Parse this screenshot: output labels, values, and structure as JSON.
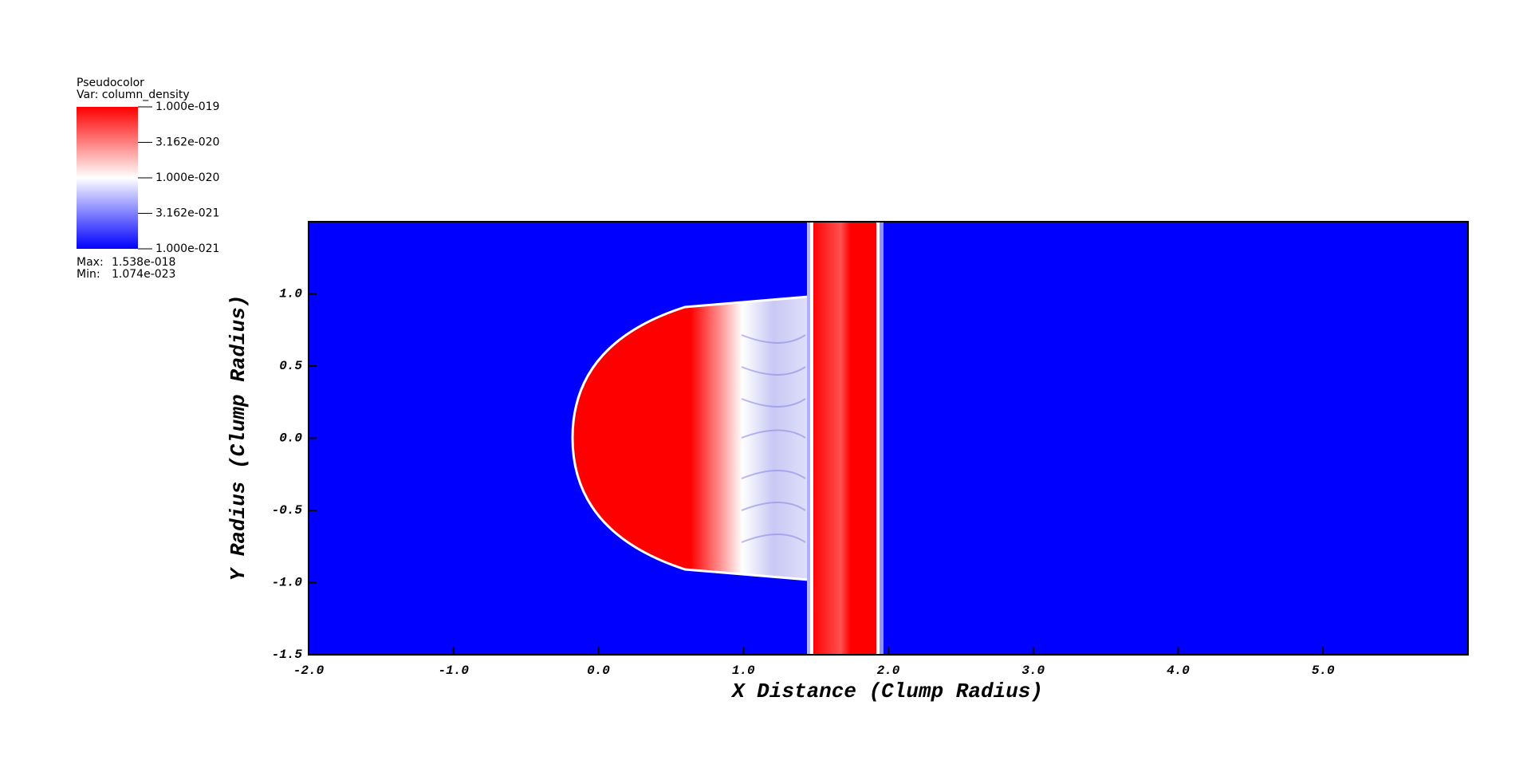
{
  "chart_data": {
    "type": "pseudocolor",
    "xlabel": "X Distance (Clump Radius)",
    "ylabel": "Y Radius (Clump Radius)",
    "xlim": [
      -2,
      6
    ],
    "ylim": [
      -1.5,
      1.5
    ],
    "xticks": [
      {
        "value": -2,
        "label": "-2.0"
      },
      {
        "value": -1,
        "label": "-1.0"
      },
      {
        "value": 0,
        "label": "0.0"
      },
      {
        "value": 1,
        "label": "1.0"
      },
      {
        "value": 2,
        "label": "2.0"
      },
      {
        "value": 3,
        "label": "3.0"
      },
      {
        "value": 4,
        "label": "4.0"
      },
      {
        "value": 5,
        "label": "5.0"
      }
    ],
    "yticks": [
      {
        "value": -1.5,
        "label": "-1.5"
      },
      {
        "value": -1,
        "label": "-1.0"
      },
      {
        "value": -0.5,
        "label": "-0.5"
      },
      {
        "value": 0,
        "label": "0.0"
      },
      {
        "value": 0.5,
        "label": "0.5"
      },
      {
        "value": 1,
        "label": "1.0"
      }
    ],
    "colorbar": {
      "title": "Pseudocolor",
      "variable": "Var: column_density",
      "log": true,
      "range": [
        1e-21,
        1e-19
      ],
      "ticks": [
        {
          "value": 1e-19,
          "label": "1.000e-019"
        },
        {
          "value": 3.162e-20,
          "label": "3.162e-020"
        },
        {
          "value": 1e-20,
          "label": "1.000e-020"
        },
        {
          "value": 3.162e-21,
          "label": "3.162e-021"
        },
        {
          "value": 1e-21,
          "label": "1.000e-021"
        }
      ],
      "colors": [
        "#0000ff",
        "#ffffff",
        "#ff0000"
      ],
      "max_label": "Max:",
      "max": {
        "value": 1.538e-18,
        "label": "1.538e-018"
      },
      "min_label": "Min:",
      "min": {
        "value": 1.074e-23,
        "label": "1.074e-023"
      }
    }
  }
}
